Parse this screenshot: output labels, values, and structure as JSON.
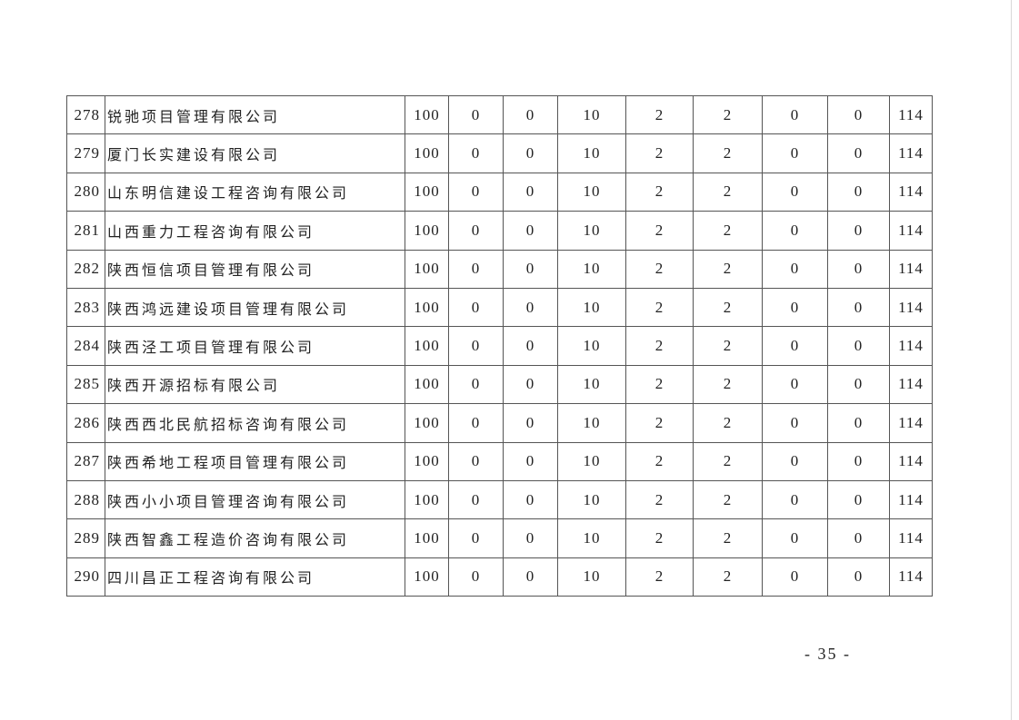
{
  "table": {
    "rows": [
      {
        "no": "278",
        "name": "锐驰项目管理有限公司",
        "values": [
          "100",
          "0",
          "0",
          "10",
          "2",
          "2",
          "0",
          "0",
          "114"
        ]
      },
      {
        "no": "279",
        "name": "厦门长实建设有限公司",
        "values": [
          "100",
          "0",
          "0",
          "10",
          "2",
          "2",
          "0",
          "0",
          "114"
        ]
      },
      {
        "no": "280",
        "name": "山东明信建设工程咨询有限公司",
        "values": [
          "100",
          "0",
          "0",
          "10",
          "2",
          "2",
          "0",
          "0",
          "114"
        ]
      },
      {
        "no": "281",
        "name": "山西重力工程咨询有限公司",
        "values": [
          "100",
          "0",
          "0",
          "10",
          "2",
          "2",
          "0",
          "0",
          "114"
        ]
      },
      {
        "no": "282",
        "name": "陕西恒信项目管理有限公司",
        "values": [
          "100",
          "0",
          "0",
          "10",
          "2",
          "2",
          "0",
          "0",
          "114"
        ]
      },
      {
        "no": "283",
        "name": "陕西鸿远建设项目管理有限公司",
        "values": [
          "100",
          "0",
          "0",
          "10",
          "2",
          "2",
          "0",
          "0",
          "114"
        ]
      },
      {
        "no": "284",
        "name": "陕西泾工项目管理有限公司",
        "values": [
          "100",
          "0",
          "0",
          "10",
          "2",
          "2",
          "0",
          "0",
          "114"
        ]
      },
      {
        "no": "285",
        "name": "陕西开源招标有限公司",
        "values": [
          "100",
          "0",
          "0",
          "10",
          "2",
          "2",
          "0",
          "0",
          "114"
        ]
      },
      {
        "no": "286",
        "name": "陕西西北民航招标咨询有限公司",
        "values": [
          "100",
          "0",
          "0",
          "10",
          "2",
          "2",
          "0",
          "0",
          "114"
        ]
      },
      {
        "no": "287",
        "name": "陕西希地工程项目管理有限公司",
        "values": [
          "100",
          "0",
          "0",
          "10",
          "2",
          "2",
          "0",
          "0",
          "114"
        ]
      },
      {
        "no": "288",
        "name": "陕西小小项目管理咨询有限公司",
        "values": [
          "100",
          "0",
          "0",
          "10",
          "2",
          "2",
          "0",
          "0",
          "114"
        ]
      },
      {
        "no": "289",
        "name": "陕西智鑫工程造价咨询有限公司",
        "values": [
          "100",
          "0",
          "0",
          "10",
          "2",
          "2",
          "0",
          "0",
          "114"
        ]
      },
      {
        "no": "290",
        "name": "四川昌正工程咨询有限公司",
        "values": [
          "100",
          "0",
          "0",
          "10",
          "2",
          "2",
          "0",
          "0",
          "114"
        ]
      }
    ]
  },
  "footer": {
    "page_number": "- 35 -"
  }
}
